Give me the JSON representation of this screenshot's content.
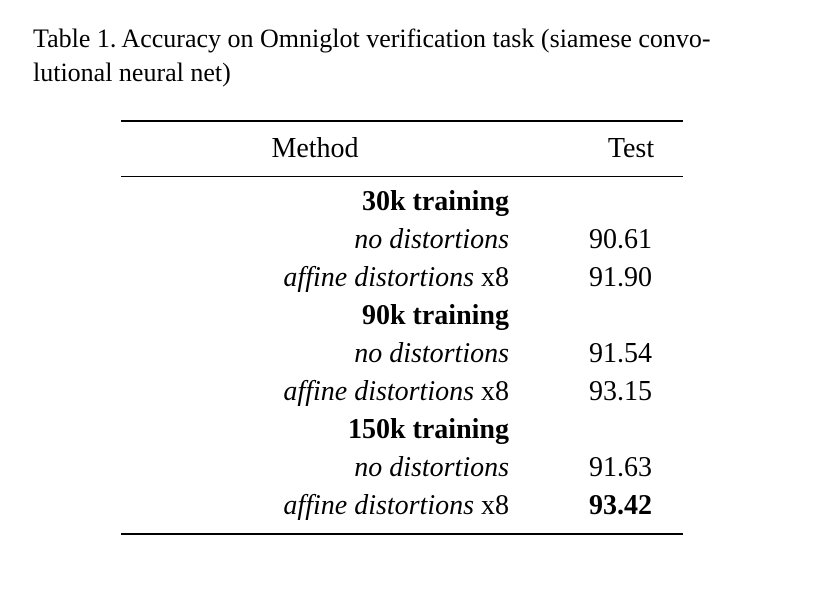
{
  "caption": "Table 1. Accuracy on Omniglot verification task (siamese convo- lutional neural net)",
  "table": {
    "headers": [
      "Method",
      "Test"
    ],
    "groups": [
      {
        "title": "30k training",
        "rows": [
          {
            "method_italic": "no distortions",
            "method_suffix": "",
            "test": "90.61"
          },
          {
            "method_italic": "affine distortions",
            "method_suffix": " x8",
            "test": "91.90"
          }
        ]
      },
      {
        "title": "90k training",
        "rows": [
          {
            "method_italic": "no distortions",
            "method_suffix": "",
            "test": "91.54"
          },
          {
            "method_italic": "affine distortions",
            "method_suffix": " x8",
            "test": "93.15"
          }
        ]
      },
      {
        "title": "150k training",
        "rows": [
          {
            "method_italic": "no distortions",
            "method_suffix": "",
            "test": "91.63"
          },
          {
            "method_italic": "affine distortions",
            "method_suffix": " x8",
            "test": "93.42",
            "test_bold": true
          }
        ]
      }
    ]
  }
}
